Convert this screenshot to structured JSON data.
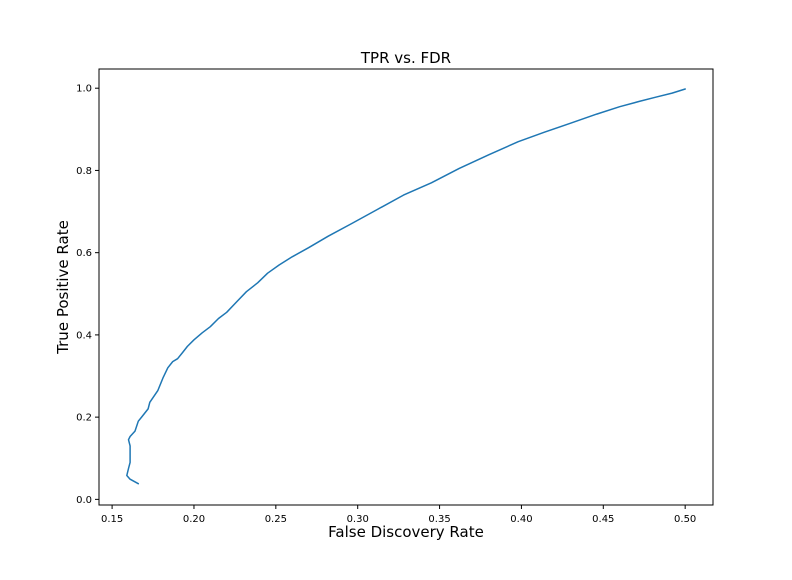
{
  "chart_data": {
    "type": "line",
    "title": "TPR vs. FDR",
    "xlabel": "False Discovery Rate",
    "ylabel": "True Positive Rate",
    "xlim": [
      0.142,
      0.517
    ],
    "ylim": [
      -0.0137,
      1.0467
    ],
    "grid": false,
    "legend": "none",
    "xticks": [
      0.15,
      0.2,
      0.25,
      0.3,
      0.35,
      0.4,
      0.45,
      0.5
    ],
    "xtick_labels": [
      "0.15",
      "0.20",
      "0.25",
      "0.30",
      "0.35",
      "0.40",
      "0.45",
      "0.50"
    ],
    "yticks": [
      0.0,
      0.2,
      0.4,
      0.6,
      0.8,
      1.0
    ],
    "ytick_labels": [
      "0.0",
      "0.2",
      "0.4",
      "0.6",
      "0.8",
      "1.0"
    ],
    "series": [
      {
        "color": "#1f77b4",
        "x": [
          0.166,
          0.161,
          0.159,
          0.16,
          0.161,
          0.161,
          0.161,
          0.16,
          0.161,
          0.164,
          0.166,
          0.168,
          0.172,
          0.173,
          0.178,
          0.181,
          0.184,
          0.187,
          0.19,
          0.193,
          0.196,
          0.2,
          0.205,
          0.21,
          0.215,
          0.22,
          0.226,
          0.232,
          0.239,
          0.245,
          0.252,
          0.26,
          0.27,
          0.282,
          0.296,
          0.312,
          0.328,
          0.345,
          0.362,
          0.38,
          0.398,
          0.414,
          0.43,
          0.446,
          0.46,
          0.472,
          0.482,
          0.492,
          0.5
        ],
        "y": [
          0.038,
          0.049,
          0.058,
          0.075,
          0.09,
          0.11,
          0.13,
          0.145,
          0.153,
          0.166,
          0.19,
          0.2,
          0.22,
          0.236,
          0.265,
          0.295,
          0.32,
          0.335,
          0.342,
          0.357,
          0.372,
          0.388,
          0.405,
          0.42,
          0.44,
          0.455,
          0.48,
          0.505,
          0.527,
          0.55,
          0.57,
          0.59,
          0.612,
          0.64,
          0.67,
          0.705,
          0.74,
          0.77,
          0.805,
          0.838,
          0.87,
          0.893,
          0.915,
          0.937,
          0.955,
          0.968,
          0.978,
          0.988,
          0.998
        ]
      }
    ]
  }
}
